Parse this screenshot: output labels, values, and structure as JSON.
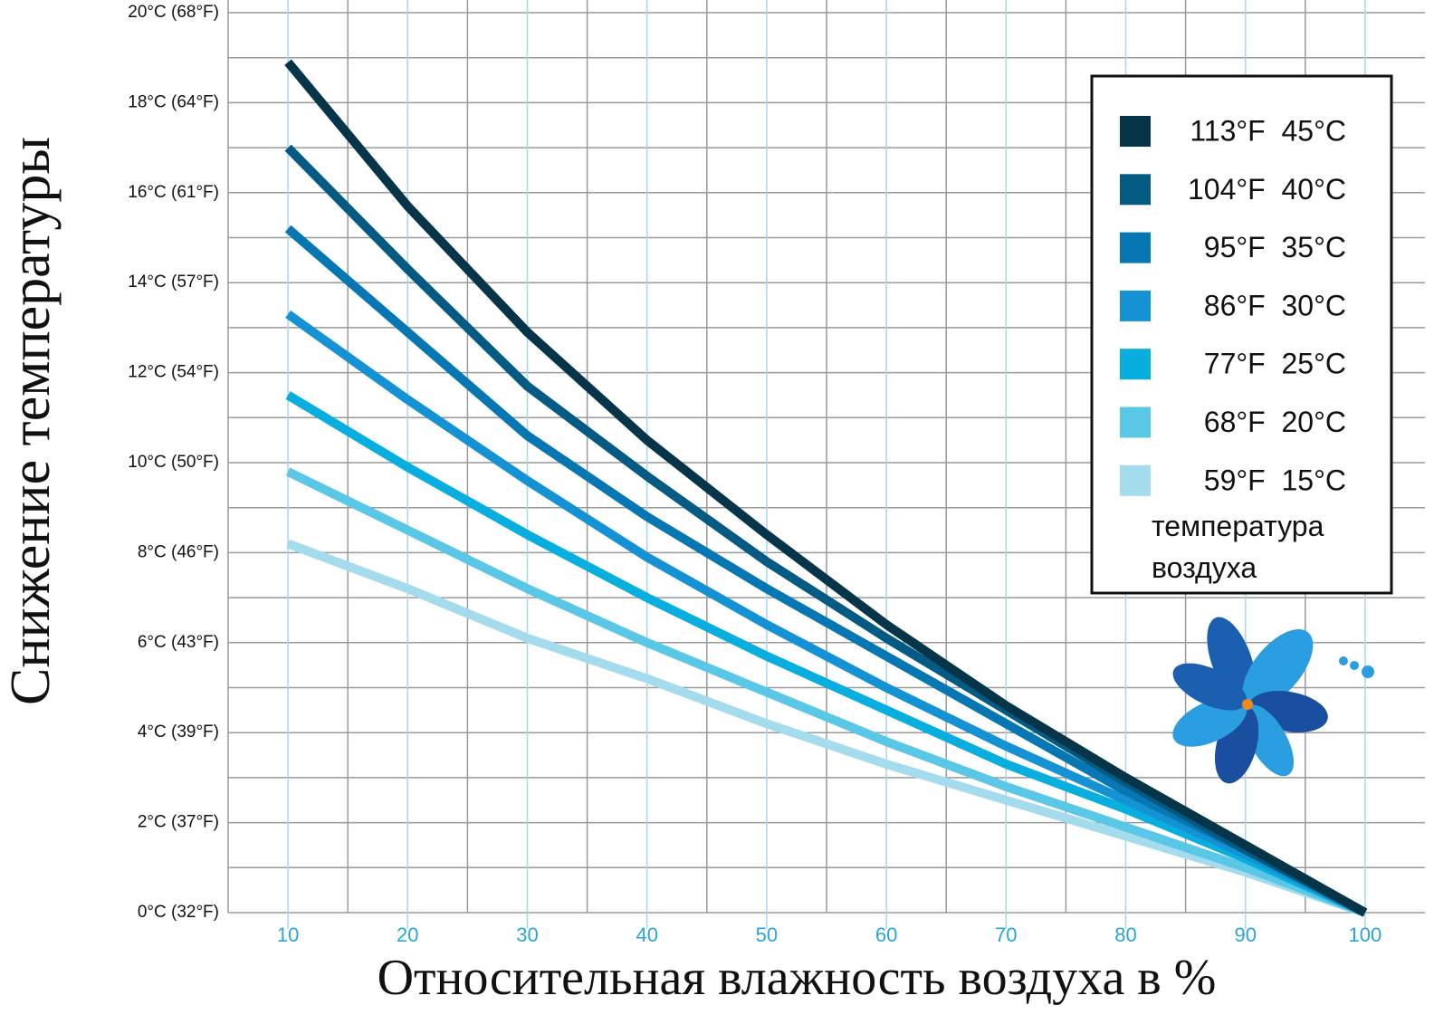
{
  "chart_data": {
    "type": "line",
    "y_title": "Снижение температуры",
    "x_title": "Относительная влажность воздуха в %",
    "legend_title": "температура воздуха",
    "legend_position": "upper right",
    "x": [
      10,
      20,
      30,
      40,
      50,
      60,
      70,
      80,
      90,
      100
    ],
    "xlim": [
      5,
      105
    ],
    "ylim": [
      0,
      20
    ],
    "xticks": [
      10,
      20,
      30,
      40,
      50,
      60,
      70,
      80,
      90,
      100
    ],
    "yticks": [
      {
        "value": 0,
        "label": "0°C (32°F)"
      },
      {
        "value": 2,
        "label": "2°C (37°F)"
      },
      {
        "value": 4,
        "label": "4°C (39°F)"
      },
      {
        "value": 6,
        "label": "6°C (43°F)"
      },
      {
        "value": 8,
        "label": "8°C (46°F)"
      },
      {
        "value": 10,
        "label": "10°C (50°F)"
      },
      {
        "value": 12,
        "label": "12°C (54°F)"
      },
      {
        "value": 14,
        "label": "14°C (57°F)"
      },
      {
        "value": 16,
        "label": "16°C (61°F)"
      },
      {
        "value": 18,
        "label": "18°C (64°F)"
      },
      {
        "value": 20,
        "label": "20°C (68°F)"
      }
    ],
    "x_minor_grid": [
      5,
      15,
      25,
      35,
      45,
      55,
      65,
      75,
      85,
      95
    ],
    "y_minor_grid": [
      1,
      3,
      5,
      7,
      9,
      11,
      13,
      15,
      17,
      19
    ],
    "grid": true,
    "series": [
      {
        "name": "113°F  45°C",
        "color": "#06354a",
        "values": [
          18.9,
          15.7,
          12.9,
          10.5,
          8.4,
          6.4,
          4.6,
          3.0,
          1.5,
          0
        ]
      },
      {
        "name": "104°F  40°C",
        "color": "#035b84",
        "values": [
          17.0,
          14.3,
          11.7,
          9.7,
          7.8,
          6.1,
          4.5,
          2.9,
          1.4,
          0
        ]
      },
      {
        "name": "95°F  35°C",
        "color": "#0677b2",
        "values": [
          15.2,
          12.9,
          10.6,
          8.8,
          7.2,
          5.7,
          4.2,
          2.7,
          1.4,
          0
        ]
      },
      {
        "name": "86°F  30°C",
        "color": "#1592d4",
        "values": [
          13.3,
          11.4,
          9.6,
          7.9,
          6.4,
          5.0,
          3.7,
          2.5,
          1.3,
          0
        ]
      },
      {
        "name": "77°F  25°C",
        "color": "#08aede",
        "values": [
          11.5,
          9.9,
          8.4,
          7.0,
          5.7,
          4.5,
          3.3,
          2.3,
          1.2,
          0
        ]
      },
      {
        "name": "68°F  20°C",
        "color": "#5bc7e6",
        "values": [
          9.8,
          8.5,
          7.2,
          6.0,
          4.9,
          3.8,
          2.8,
          1.9,
          1.0,
          0
        ]
      },
      {
        "name": "59°F  15°C",
        "color": "#a5dced",
        "values": [
          8.2,
          7.2,
          6.1,
          5.2,
          4.2,
          3.3,
          2.5,
          1.7,
          0.9,
          0
        ]
      }
    ]
  }
}
